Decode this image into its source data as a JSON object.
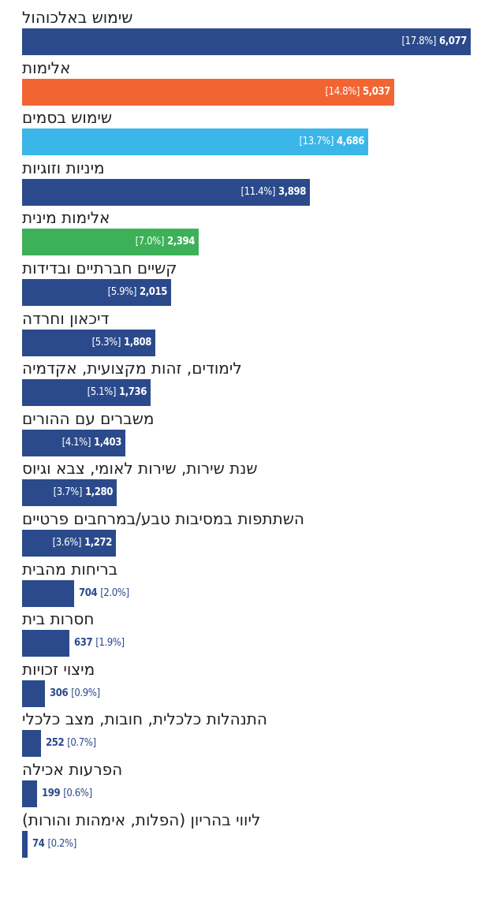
{
  "chart_data": {
    "type": "bar",
    "orientation": "horizontal",
    "categories": [
      "שימוש באלכוהול",
      "אלימות",
      "שימוש בסמים",
      "מיניות וזוגיות",
      "אלימות מינית",
      "קשיים חברתיים ובדידות",
      "דיכאון וחרדה",
      "לימודים, זהות מקצועית, אקדמיה",
      "משברים עם ההורים",
      "שנת שירות, שירות לאומי, צבא וגיוס",
      "השתתפות במסיבות טבע/במרחבים פרטיים",
      "בריחות מהבית",
      "חסרות בית",
      "מיצוי זכויות",
      "התנהלות כלכלית, חובות, מצב כלכלי",
      "הפרעות אכילה",
      "ליווי בהריון (הפלות, אימהות והורות)"
    ],
    "values": [
      6077,
      5037,
      4686,
      3898,
      2394,
      2015,
      1808,
      1736,
      1403,
      1280,
      1272,
      704,
      637,
      306,
      252,
      199,
      74
    ],
    "value_labels": [
      "6,077",
      "5,037",
      "4,686",
      "3,898",
      "2,394",
      "2,015",
      "1,808",
      "1,736",
      "1,403",
      "1,280",
      "1,272",
      "704",
      "637",
      "306",
      "252",
      "199",
      "74"
    ],
    "percent_labels": [
      "[17.8%]",
      "[14.8%]",
      "[13.7%]",
      "[11.4%]",
      "[7.0%]",
      "[5.9%]",
      "[5.3%]",
      "[5.1%]",
      "[4.1%]",
      "[3.7%]",
      "[3.6%]",
      "[2.0%]",
      "[1.9%]",
      "[0.9%]",
      "[0.7%]",
      "[0.6%]",
      "[0.2%]"
    ],
    "bar_colors": [
      "#2b4a8b",
      "#f26533",
      "#3ab6e8",
      "#2b4a8b",
      "#3cb158",
      "#2b4a8b",
      "#2b4a8b",
      "#2b4a8b",
      "#2b4a8b",
      "#2b4a8b",
      "#2b4a8b",
      "#2b4a8b",
      "#2b4a8b",
      "#2b4a8b",
      "#2b4a8b",
      "#2b4a8b",
      "#2b4a8b"
    ],
    "label_color_inside": "#ffffff",
    "label_color_outside": "#2b4a8b",
    "xlim": [
      0,
      6077
    ],
    "title": "",
    "xlabel": "",
    "ylabel": "",
    "grid": false,
    "legend": "none"
  }
}
